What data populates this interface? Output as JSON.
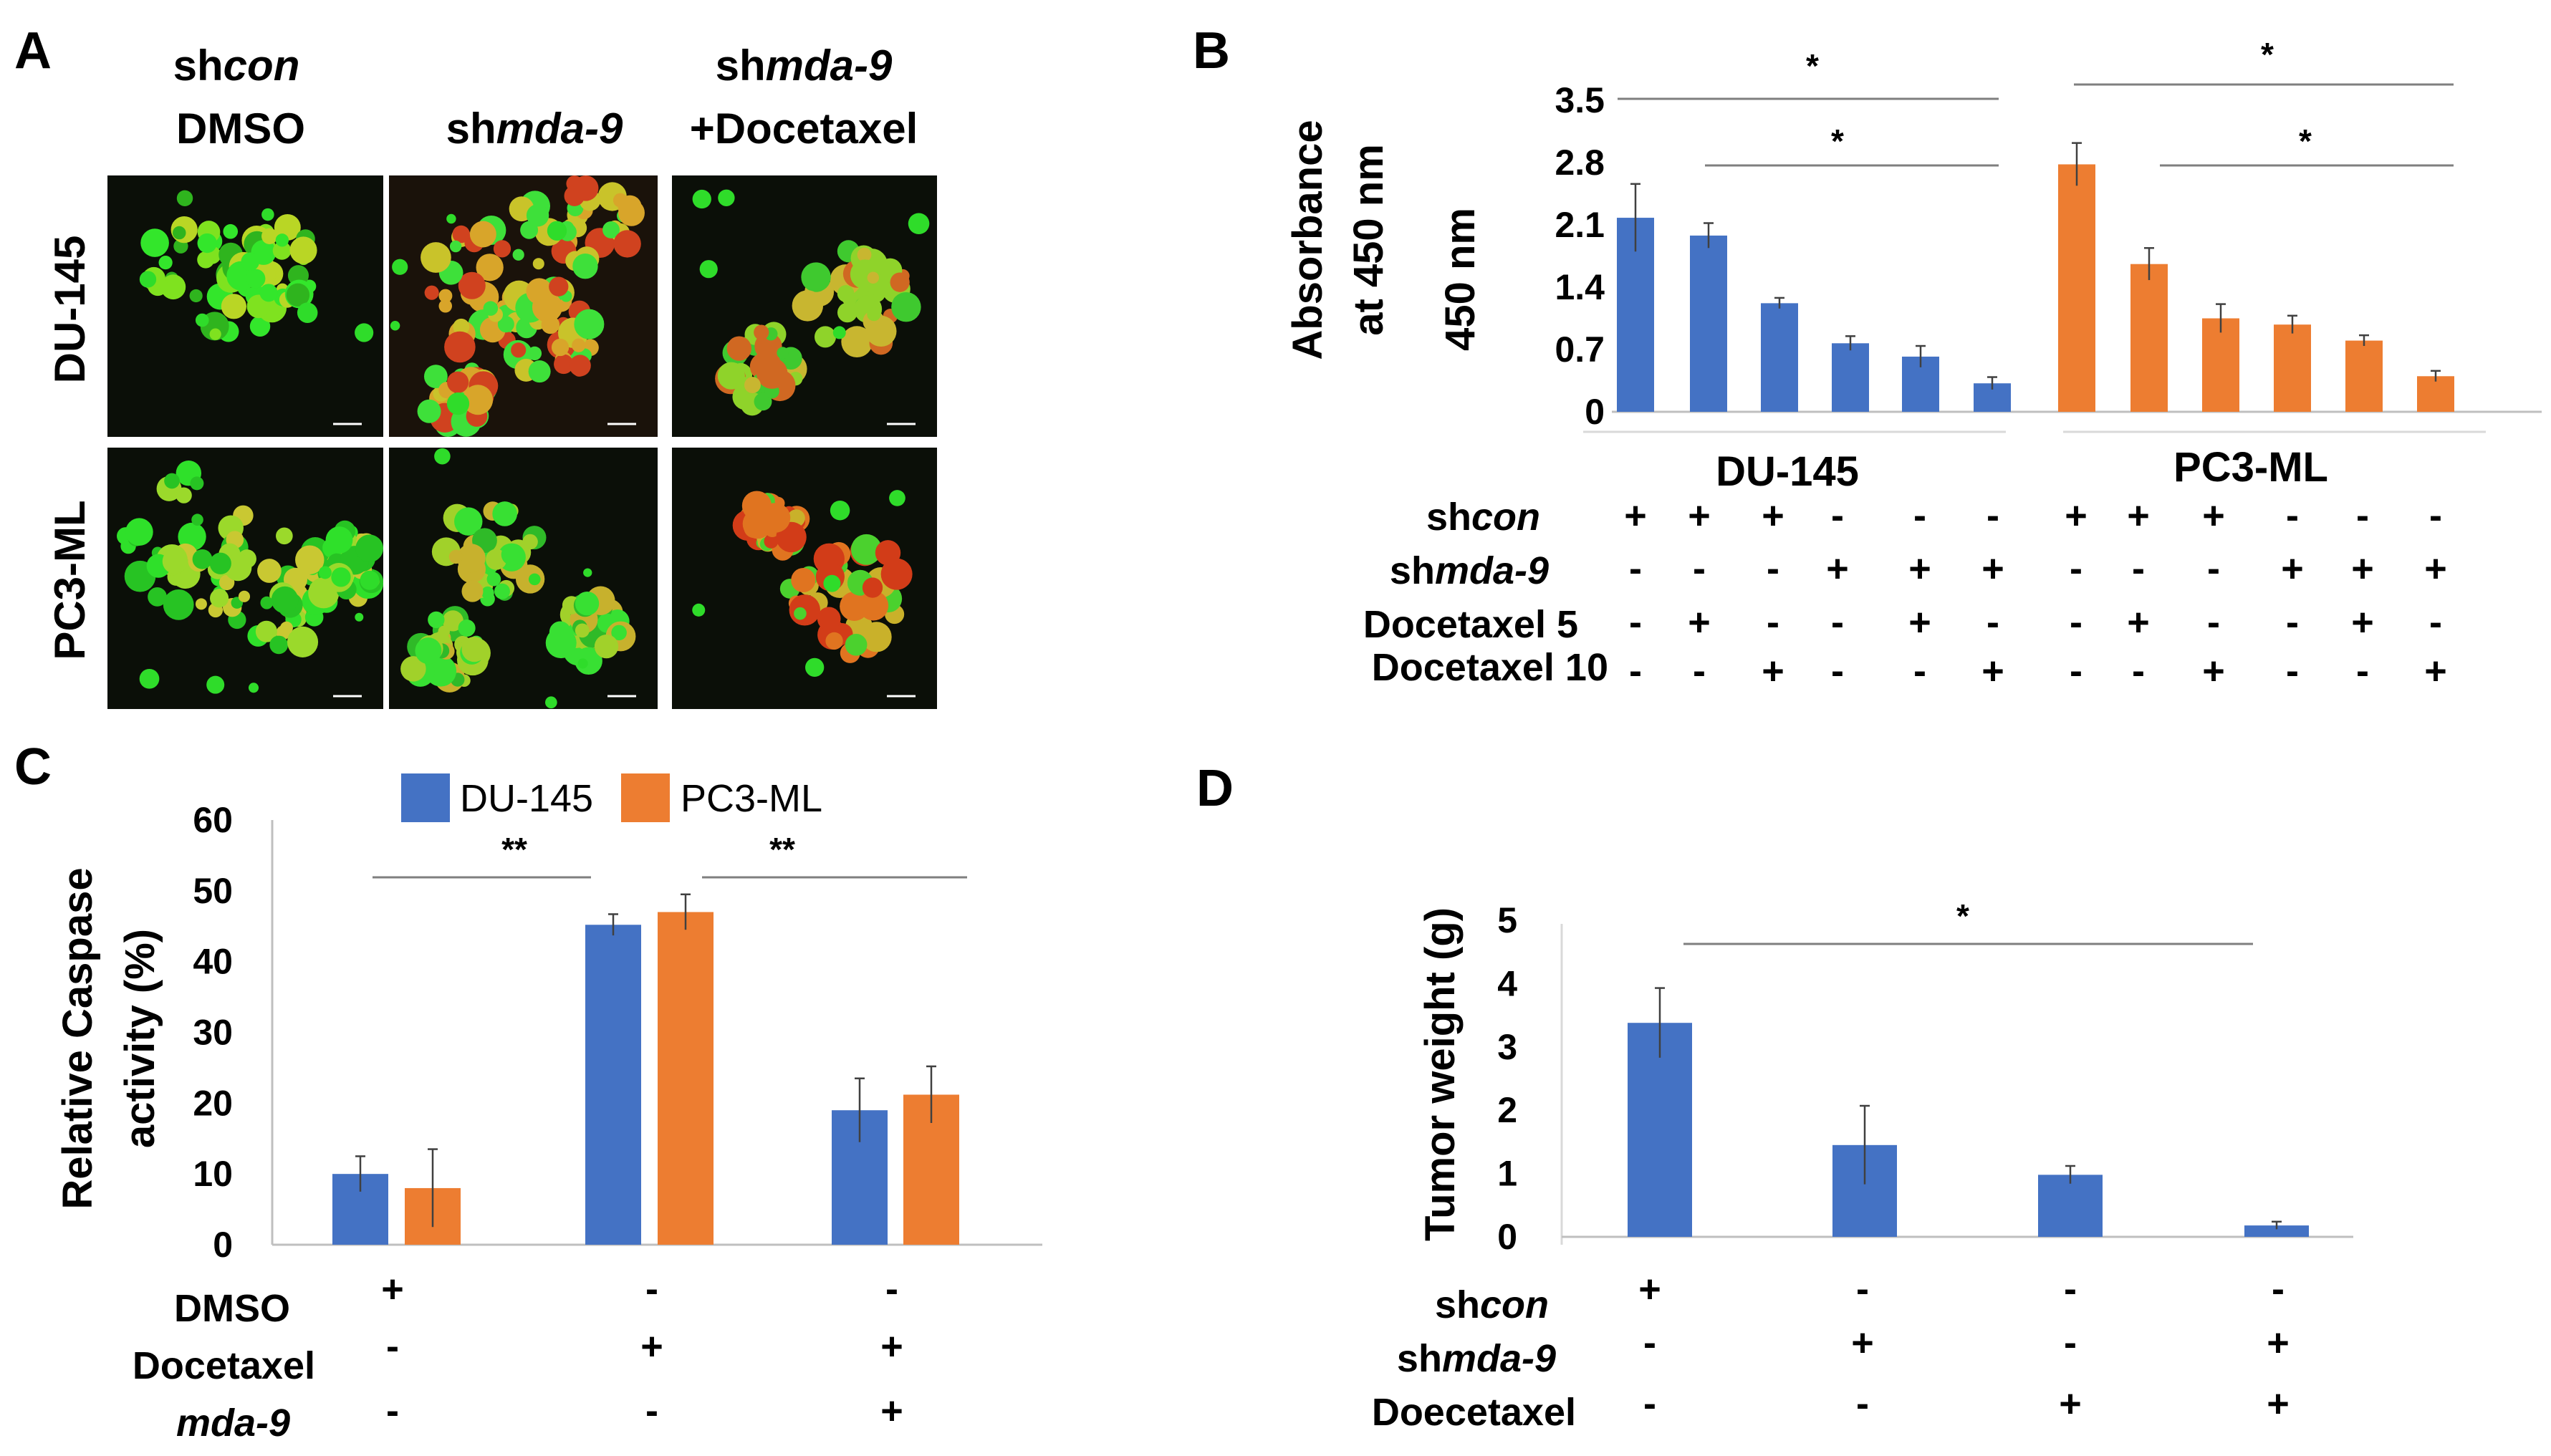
{
  "panel_letters": {
    "a": "A",
    "b": "B",
    "c": "C",
    "d": "D"
  },
  "colors": {
    "blue": "#4472C4",
    "orange": "#ED7D31",
    "sig_line": "#7f7f7f",
    "axis": "#bfbfbf"
  },
  "panel_a": {
    "column_headers": [
      {
        "line1_plain": "sh",
        "line1_italic": "con",
        "line2": "DMSO"
      },
      {
        "line1_plain": "sh",
        "line1_italic": "mda-9",
        "line2": ""
      },
      {
        "line1_plain": "sh",
        "line1_italic": "mda-9",
        "line2": "+Docetaxel"
      }
    ],
    "row_labels": [
      "DU-145",
      "PC3-ML"
    ]
  },
  "chart_data": [
    {
      "id": "B",
      "type": "bar",
      "ylabel_line1": "Absorbance",
      "ylabel_line2": "at 450 nm",
      "ylabel_inner": "450 nm",
      "ylim": [
        0,
        3.5
      ],
      "yticks": [
        "0",
        "0.7",
        "1.4",
        "2.1",
        "2.8",
        "3.5"
      ],
      "ytick_values": [
        0,
        0.7,
        1.4,
        2.1,
        2.8,
        3.5
      ],
      "groups": [
        "DU-145",
        "PC3-ML"
      ],
      "series": [
        {
          "name": "DU-145",
          "color": "#4472C4",
          "values": [
            2.18,
            1.98,
            1.22,
            0.77,
            0.62,
            0.32
          ],
          "errors": [
            0.38,
            0.14,
            0.06,
            0.08,
            0.12,
            0.07
          ]
        },
        {
          "name": "PC3-ML",
          "color": "#ED7D31",
          "values": [
            2.78,
            1.66,
            1.05,
            0.98,
            0.8,
            0.4
          ],
          "errors": [
            0.24,
            0.18,
            0.16,
            0.1,
            0.06,
            0.06
          ]
        }
      ],
      "significance": [
        "*",
        "*",
        "*",
        "*"
      ],
      "conditions": [
        {
          "label_plain": "sh",
          "label_italic": "con",
          "signs": [
            "+",
            "+",
            "+",
            "-",
            "-",
            "-",
            "+",
            "+",
            "+",
            "-",
            "-",
            "-"
          ]
        },
        {
          "label_plain": "sh",
          "label_italic": "mda-9",
          "signs": [
            "-",
            "-",
            "-",
            "+",
            "+",
            "+",
            "-",
            "-",
            "-",
            "+",
            "+",
            "+"
          ]
        },
        {
          "label_plain": "Docetaxel 5",
          "label_italic": "",
          "signs": [
            "-",
            "+",
            "-",
            "-",
            "+",
            "-",
            "-",
            "+",
            "-",
            "-",
            "+",
            "-"
          ]
        },
        {
          "label_plain": "Docetaxel 10",
          "label_italic": "",
          "signs": [
            "-",
            "-",
            "+",
            "-",
            "-",
            "+",
            "-",
            "-",
            "+",
            "-",
            "-",
            "+"
          ]
        }
      ]
    },
    {
      "id": "C",
      "type": "bar",
      "ylabel_line1": "Relative Caspase",
      "ylabel_line2": "activity (%)",
      "ylim": [
        0,
        60
      ],
      "yticks": [
        "0",
        "10",
        "20",
        "30",
        "40",
        "50",
        "60"
      ],
      "ytick_values": [
        0,
        10,
        20,
        30,
        40,
        50,
        60
      ],
      "legend": [
        "DU-145",
        "PC3-ML"
      ],
      "series": [
        {
          "name": "DU-145",
          "color": "#4472C4",
          "values": [
            10,
            45.2,
            19
          ],
          "errors": [
            2.5,
            1.5,
            4.5
          ]
        },
        {
          "name": "PC3-ML",
          "color": "#ED7D31",
          "values": [
            8,
            47,
            21.2
          ],
          "errors": [
            5.5,
            2.5,
            4
          ]
        }
      ],
      "significance": [
        "**",
        "**"
      ],
      "conditions": [
        {
          "label_plain": "DMSO",
          "label_italic": "",
          "signs": [
            "+",
            "-",
            "-"
          ]
        },
        {
          "label_plain": "Docetaxel",
          "label_italic": "",
          "signs": [
            "-",
            "+",
            "+"
          ]
        },
        {
          "label_plain": "",
          "label_italic": "mda-9",
          "signs": [
            "-",
            "-",
            "+"
          ]
        }
      ]
    },
    {
      "id": "D",
      "type": "bar",
      "ylabel": "Tumor weight (g)",
      "ylim": [
        0,
        5
      ],
      "yticks": [
        "0",
        "1",
        "2",
        "3",
        "4",
        "5"
      ],
      "ytick_values": [
        0,
        1,
        2,
        3,
        4,
        5
      ],
      "series": [
        {
          "name": "Tumor weight",
          "color": "#4472C4",
          "values": [
            3.38,
            1.45,
            0.98,
            0.18
          ],
          "errors": [
            0.55,
            0.62,
            0.14,
            0.06
          ]
        }
      ],
      "significance": [
        "*"
      ],
      "conditions": [
        {
          "label_plain": "sh",
          "label_italic": "con",
          "signs": [
            "+",
            "-",
            "-",
            "-"
          ]
        },
        {
          "label_plain": "sh",
          "label_italic": "mda-9",
          "signs": [
            "-",
            "+",
            "-",
            "+"
          ]
        },
        {
          "label_plain": "Doecetaxel",
          "label_italic": "",
          "signs": [
            "-",
            "-",
            "+",
            "+"
          ]
        }
      ]
    }
  ]
}
